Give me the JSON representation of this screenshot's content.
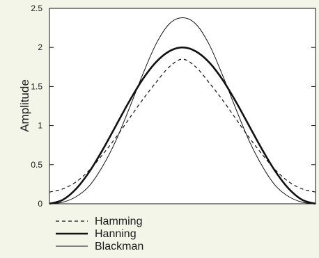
{
  "chart_data": {
    "type": "line",
    "title": "",
    "xlabel": "",
    "ylabel": "Amplitude",
    "ylim": [
      0,
      2.5
    ],
    "xlim": [
      0,
      1
    ],
    "yticks": [
      "0",
      "0.5",
      "1",
      "1.5",
      "2",
      "2.5"
    ],
    "grid": false,
    "legend": "bottom-left",
    "series": [
      {
        "name": "Hamming",
        "line_style": "dashed",
        "color": "#111111",
        "x": [
          0,
          0.05,
          0.1,
          0.15,
          0.2,
          0.25,
          0.3,
          0.35,
          0.4,
          0.45,
          0.5,
          0.55,
          0.6,
          0.65,
          0.7,
          0.75,
          0.8,
          0.85,
          0.9,
          0.95,
          1.0
        ],
        "values": [
          0.15,
          0.19,
          0.28,
          0.43,
          0.63,
          0.85,
          1.09,
          1.33,
          1.55,
          1.75,
          1.85,
          1.75,
          1.55,
          1.33,
          1.09,
          0.85,
          0.63,
          0.43,
          0.28,
          0.19,
          0.15
        ]
      },
      {
        "name": "Hanning",
        "line_style": "solid-thick",
        "color": "#111111",
        "x": [
          0,
          0.05,
          0.1,
          0.15,
          0.2,
          0.25,
          0.3,
          0.35,
          0.4,
          0.45,
          0.5,
          0.55,
          0.6,
          0.65,
          0.7,
          0.75,
          0.8,
          0.85,
          0.9,
          0.95,
          1.0
        ],
        "values": [
          0,
          0.05,
          0.19,
          0.41,
          0.69,
          1.0,
          1.31,
          1.59,
          1.81,
          1.95,
          2.0,
          1.95,
          1.81,
          1.59,
          1.31,
          1.0,
          0.69,
          0.41,
          0.19,
          0.05,
          0
        ]
      },
      {
        "name": "Blackman",
        "line_style": "solid-thin",
        "color": "#111111",
        "x": [
          0,
          0.05,
          0.1,
          0.15,
          0.2,
          0.25,
          0.3,
          0.35,
          0.4,
          0.45,
          0.5,
          0.55,
          0.6,
          0.65,
          0.7,
          0.75,
          0.8,
          0.85,
          0.9,
          0.95,
          1.0
        ],
        "values": [
          0,
          0.02,
          0.09,
          0.23,
          0.48,
          0.81,
          1.22,
          1.65,
          2.04,
          2.3,
          2.38,
          2.3,
          2.04,
          1.65,
          1.22,
          0.81,
          0.48,
          0.23,
          0.09,
          0.02,
          0
        ]
      }
    ]
  }
}
